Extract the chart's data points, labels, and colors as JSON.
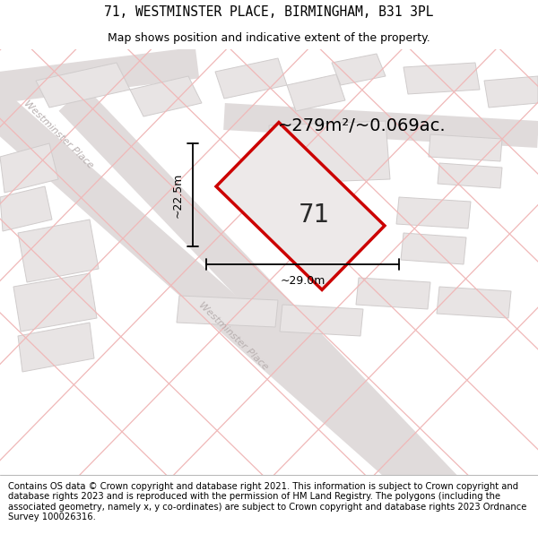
{
  "title_line1": "71, WESTMINSTER PLACE, BIRMINGHAM, B31 3PL",
  "title_line2": "Map shows position and indicative extent of the property.",
  "area_label": "~279m²/~0.069ac.",
  "property_number": "71",
  "width_label": "~29.0m",
  "height_label": "~22.5m",
  "footer_text": "Contains OS data © Crown copyright and database right 2021. This information is subject to Crown copyright and database rights 2023 and is reproduced with the permission of HM Land Registry. The polygons (including the associated geometry, namely x, y co-ordinates) are subject to Crown copyright and database rights 2023 Ordnance Survey 100026316.",
  "bg_color": "#f7f5f5",
  "map_bg": "#ffffff",
  "road_color": "#e0dbdb",
  "block_color": "#e8e4e4",
  "block_edge": "#d0cccc",
  "property_fill": "#ede9e9",
  "property_edge": "#cc0000",
  "road_label_color": "#b8b0b0",
  "pink_line": "#f0b8b8",
  "title_fontsize": 10.5,
  "subtitle_fontsize": 9,
  "footer_fontsize": 7.2,
  "area_fontsize": 14,
  "number_fontsize": 20,
  "dim_fontsize": 9
}
